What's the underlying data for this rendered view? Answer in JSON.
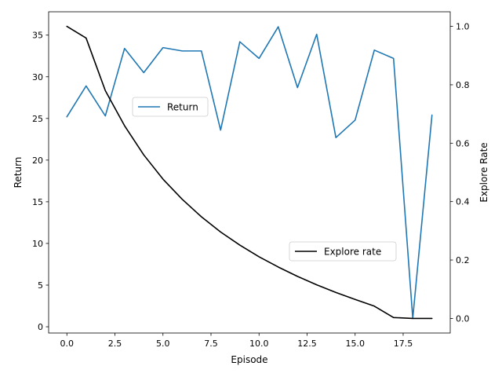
{
  "chart_data": {
    "type": "line",
    "xlabel": "Episode",
    "x": [
      0,
      1,
      2,
      3,
      4,
      5,
      6,
      7,
      8,
      9,
      10,
      11,
      12,
      13,
      14,
      15,
      16,
      17,
      18,
      19
    ],
    "xlim": [
      -0.95,
      19.95
    ],
    "xticks": [
      0.0,
      2.5,
      5.0,
      7.5,
      10.0,
      12.5,
      15.0,
      17.5
    ],
    "xtick_labels": [
      "0.0",
      "2.5",
      "5.0",
      "7.5",
      "10.0",
      "12.5",
      "15.0",
      "17.5"
    ],
    "left_axis": {
      "label": "Return",
      "lim": [
        -0.75,
        37.8
      ],
      "ticks": [
        0,
        5,
        10,
        15,
        20,
        25,
        30,
        35
      ],
      "tick_labels": [
        "0",
        "5",
        "10",
        "15",
        "20",
        "25",
        "30",
        "35"
      ]
    },
    "right_axis": {
      "label": "Explore Rate",
      "lim": [
        -0.05,
        1.05
      ],
      "ticks": [
        0.0,
        0.2,
        0.4,
        0.6,
        0.8,
        1.0
      ],
      "tick_labels": [
        "0.0",
        "0.2",
        "0.4",
        "0.6",
        "0.8",
        "1.0"
      ]
    },
    "series": [
      {
        "name": "Return",
        "axis": "left",
        "color": "#1f77b4",
        "values": [
          25.2,
          28.9,
          25.3,
          33.4,
          30.5,
          33.5,
          33.1,
          33.1,
          23.6,
          34.2,
          32.2,
          36.0,
          28.7,
          35.1,
          22.7,
          24.8,
          33.2,
          32.2,
          1.0,
          25.4
        ]
      },
      {
        "name": "Explore rate",
        "axis": "right",
        "color": "#000000",
        "values": [
          1.0,
          0.96,
          0.78,
          0.66,
          0.56,
          0.477,
          0.408,
          0.348,
          0.296,
          0.251,
          0.211,
          0.176,
          0.144,
          0.115,
          0.089,
          0.065,
          0.042,
          0.003,
          0.0,
          0.0
        ]
      }
    ],
    "legends": [
      {
        "entries": [
          "Return"
        ],
        "placement": "center-left"
      },
      {
        "entries": [
          "Explore rate"
        ],
        "placement": "lower-right"
      }
    ],
    "grid": false
  }
}
